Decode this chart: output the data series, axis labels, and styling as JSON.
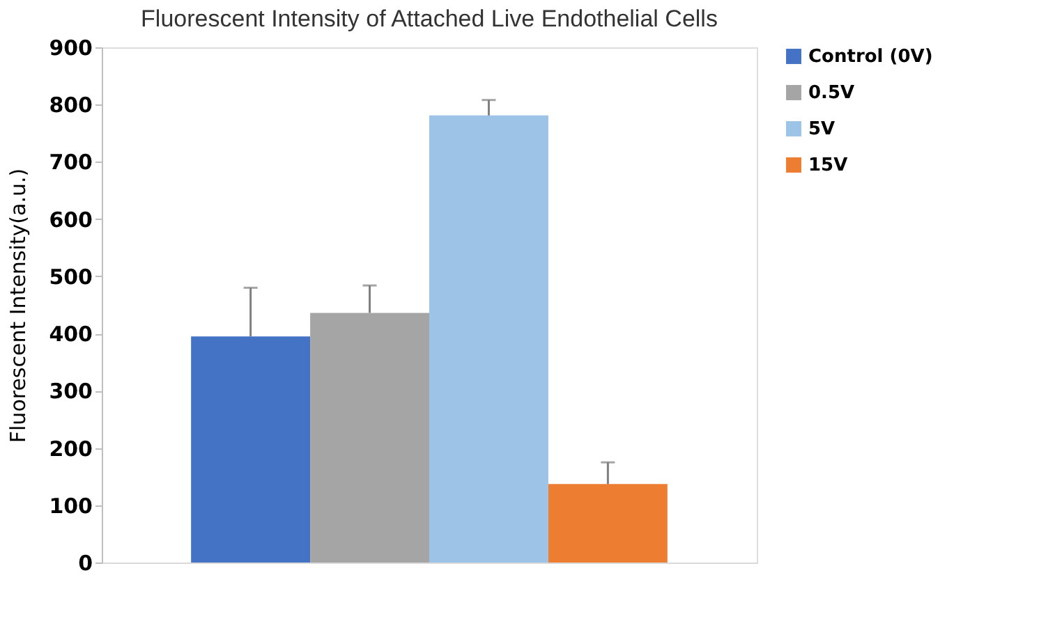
{
  "chart_data": {
    "type": "bar",
    "title": "Fluorescent Intensity of Attached Live Endothelial Cells",
    "ylabel": "Fluorescent Intensity(a.u.)",
    "categories": [
      null
    ],
    "series": [
      {
        "name": "Control (0V)",
        "color": "#4472c4",
        "values": [
          395
        ],
        "errors": [
          85
        ]
      },
      {
        "name": "0.5V",
        "color": "#a5a5a5",
        "values": [
          436
        ],
        "errors": [
          48
        ]
      },
      {
        "name": "5V",
        "color": "#9dc3e6",
        "values": [
          781
        ],
        "errors": [
          27
        ]
      },
      {
        "name": "15V",
        "color": "#ed7d31",
        "values": [
          137
        ],
        "errors": [
          38
        ]
      }
    ],
    "ylim": [
      0,
      900
    ],
    "yticks": [
      0,
      100,
      200,
      300,
      400,
      500,
      600,
      700,
      800,
      900
    ],
    "grid": false,
    "legend": "right",
    "tick_labels": "y"
  }
}
